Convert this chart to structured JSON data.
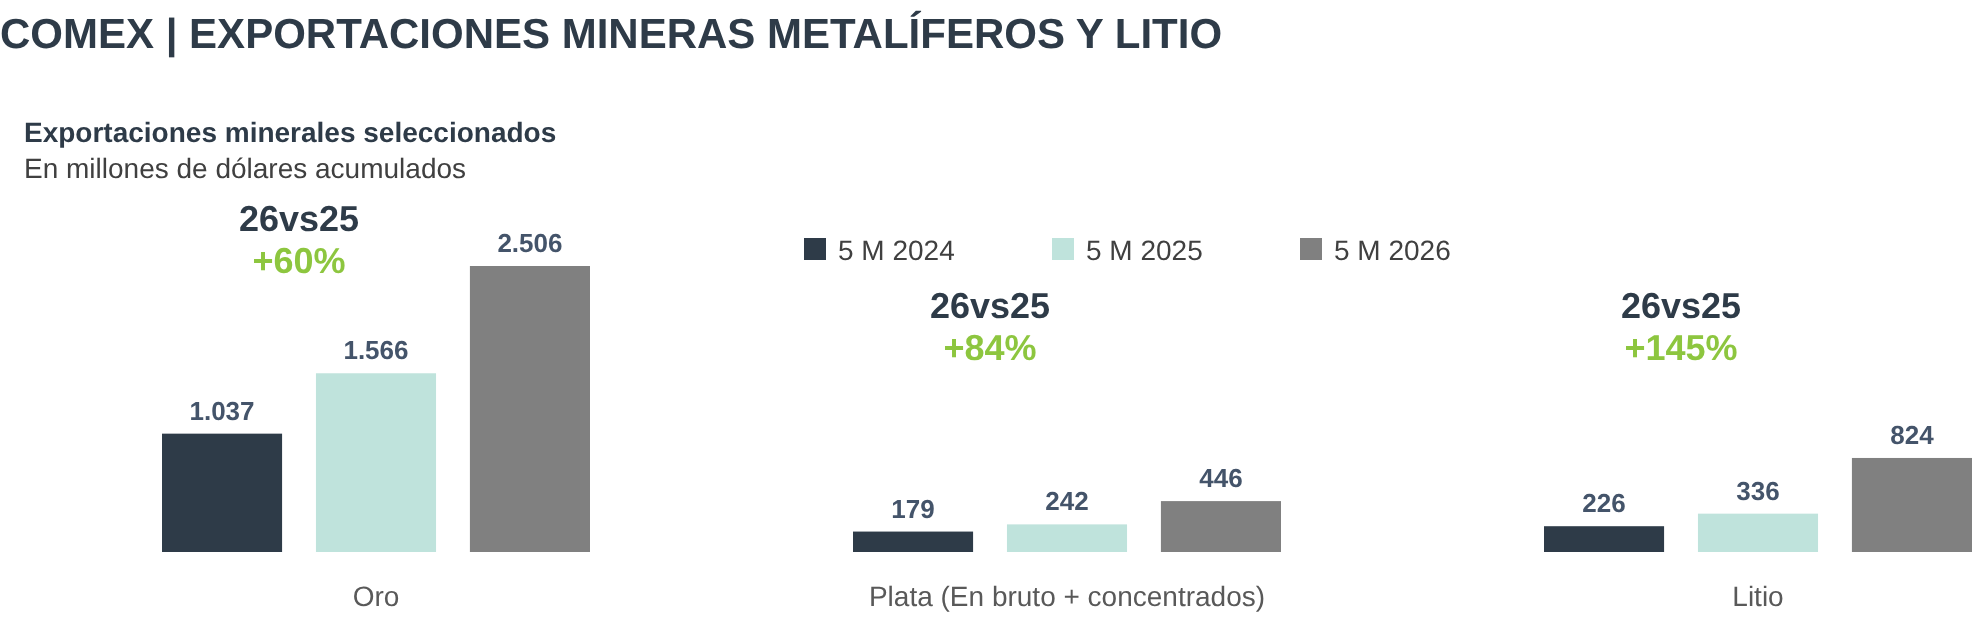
{
  "chart_data": {
    "type": "bar",
    "title": "COMEX | EXPORTACIONES MINERAS METALÍFEROS Y LITIO",
    "subtitle": "Exportaciones minerales seleccionados",
    "categories": [
      "Oro",
      "Plata (En bruto + concentrados)",
      "Litio"
    ],
    "series": [
      {
        "name": "5 M 2024",
        "color": "#2e3b48",
        "values": [
          1037,
          179,
          226
        ],
        "value_labels": [
          "1.037",
          "179",
          "226"
        ]
      },
      {
        "name": "5 M 2025",
        "color": "#bfe3dc",
        "values": [
          1566,
          242,
          336
        ],
        "value_labels": [
          "1.566",
          "242",
          "336"
        ]
      },
      {
        "name": "5 M 2026",
        "color": "#808080",
        "values": [
          2506,
          446,
          824
        ],
        "value_labels": [
          "2.506",
          "446",
          "824"
        ]
      }
    ],
    "annotations": [
      "En millones de dólares acumulados",
      "26vs25",
      "+60%",
      "26vs25",
      "+84%",
      "26vs25",
      "+145%"
    ],
    "legend": "top",
    "grid": false
  }
}
